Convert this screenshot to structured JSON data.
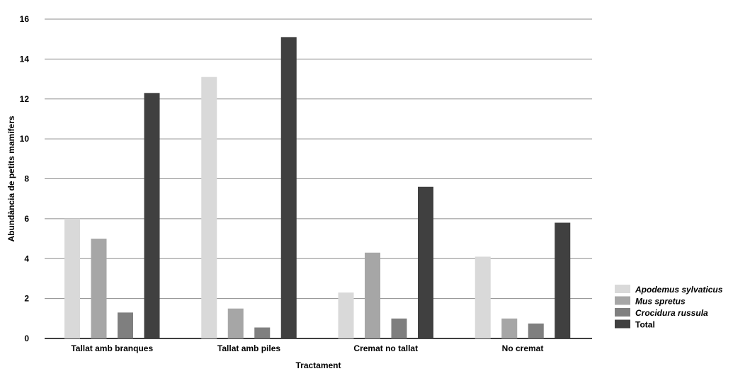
{
  "chart_data": {
    "type": "bar",
    "title": "",
    "xlabel": "Tractament",
    "ylabel": "Abundància de petits mamífers",
    "ylim": [
      0,
      16
    ],
    "yticks": [
      0,
      2,
      4,
      6,
      8,
      10,
      12,
      14,
      16
    ],
    "grid": true,
    "legend_position": "bottom-right",
    "categories": [
      "Tallat amb branques",
      "Tallat amb piles",
      "Cremat no tallat",
      "No cremat"
    ],
    "series": [
      {
        "name": "Apodemus sylvaticus",
        "color": "#d9d9d9",
        "italic": true,
        "values": [
          6.0,
          13.1,
          2.3,
          4.1
        ]
      },
      {
        "name": "Mus spretus",
        "color": "#a6a6a6",
        "italic": true,
        "values": [
          5.0,
          1.5,
          4.3,
          1.0
        ]
      },
      {
        "name": "Crocidura russula",
        "color": "#7f7f7f",
        "italic": true,
        "values": [
          1.3,
          0.55,
          1.0,
          0.75
        ]
      },
      {
        "name": "Total",
        "color": "#404040",
        "italic": false,
        "values": [
          12.3,
          15.1,
          7.6,
          5.8
        ]
      }
    ]
  }
}
